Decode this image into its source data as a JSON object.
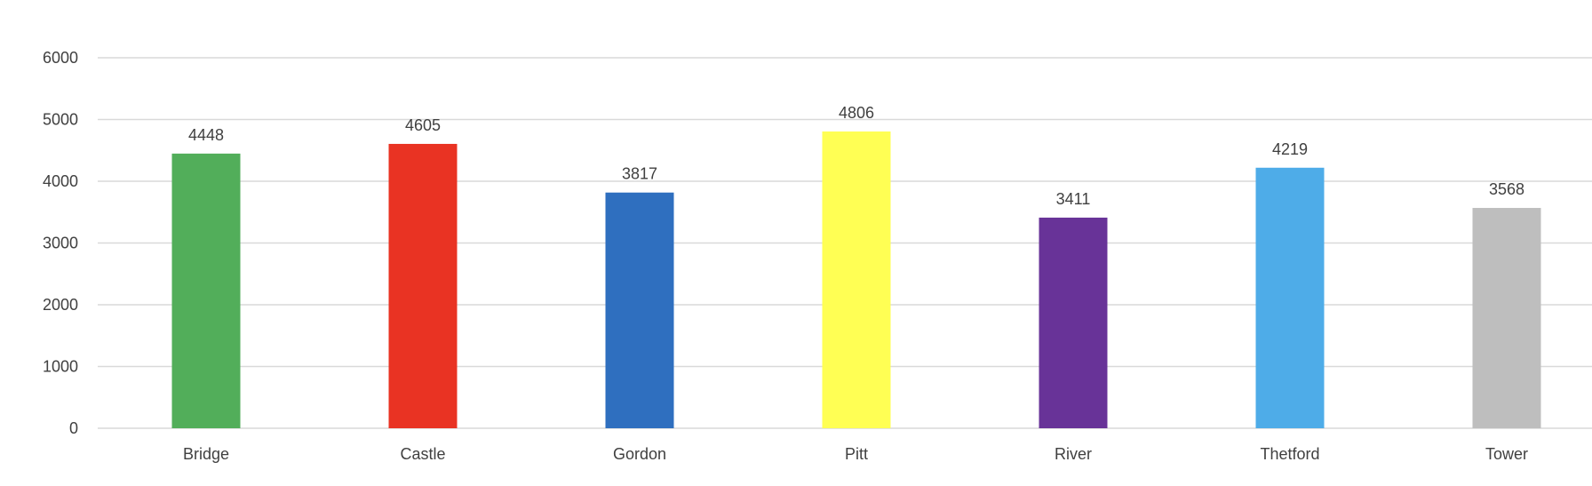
{
  "chart_data": {
    "type": "bar",
    "categories": [
      "Bridge",
      "Castle",
      "Gordon",
      "Pitt",
      "River",
      "Thetford",
      "Tower"
    ],
    "values": [
      4448,
      4605,
      3817,
      4806,
      3411,
      4219,
      3568
    ],
    "colors": [
      "#52AE5A",
      "#E93323",
      "#2F6FBF",
      "#FFFF54",
      "#683398",
      "#4EACE8",
      "#BEBEBE"
    ],
    "ylim": [
      0,
      6000
    ],
    "yticks": [
      0,
      1000,
      2000,
      3000,
      4000,
      5000,
      6000
    ],
    "grid": true,
    "legend": false,
    "data_labels": true
  }
}
